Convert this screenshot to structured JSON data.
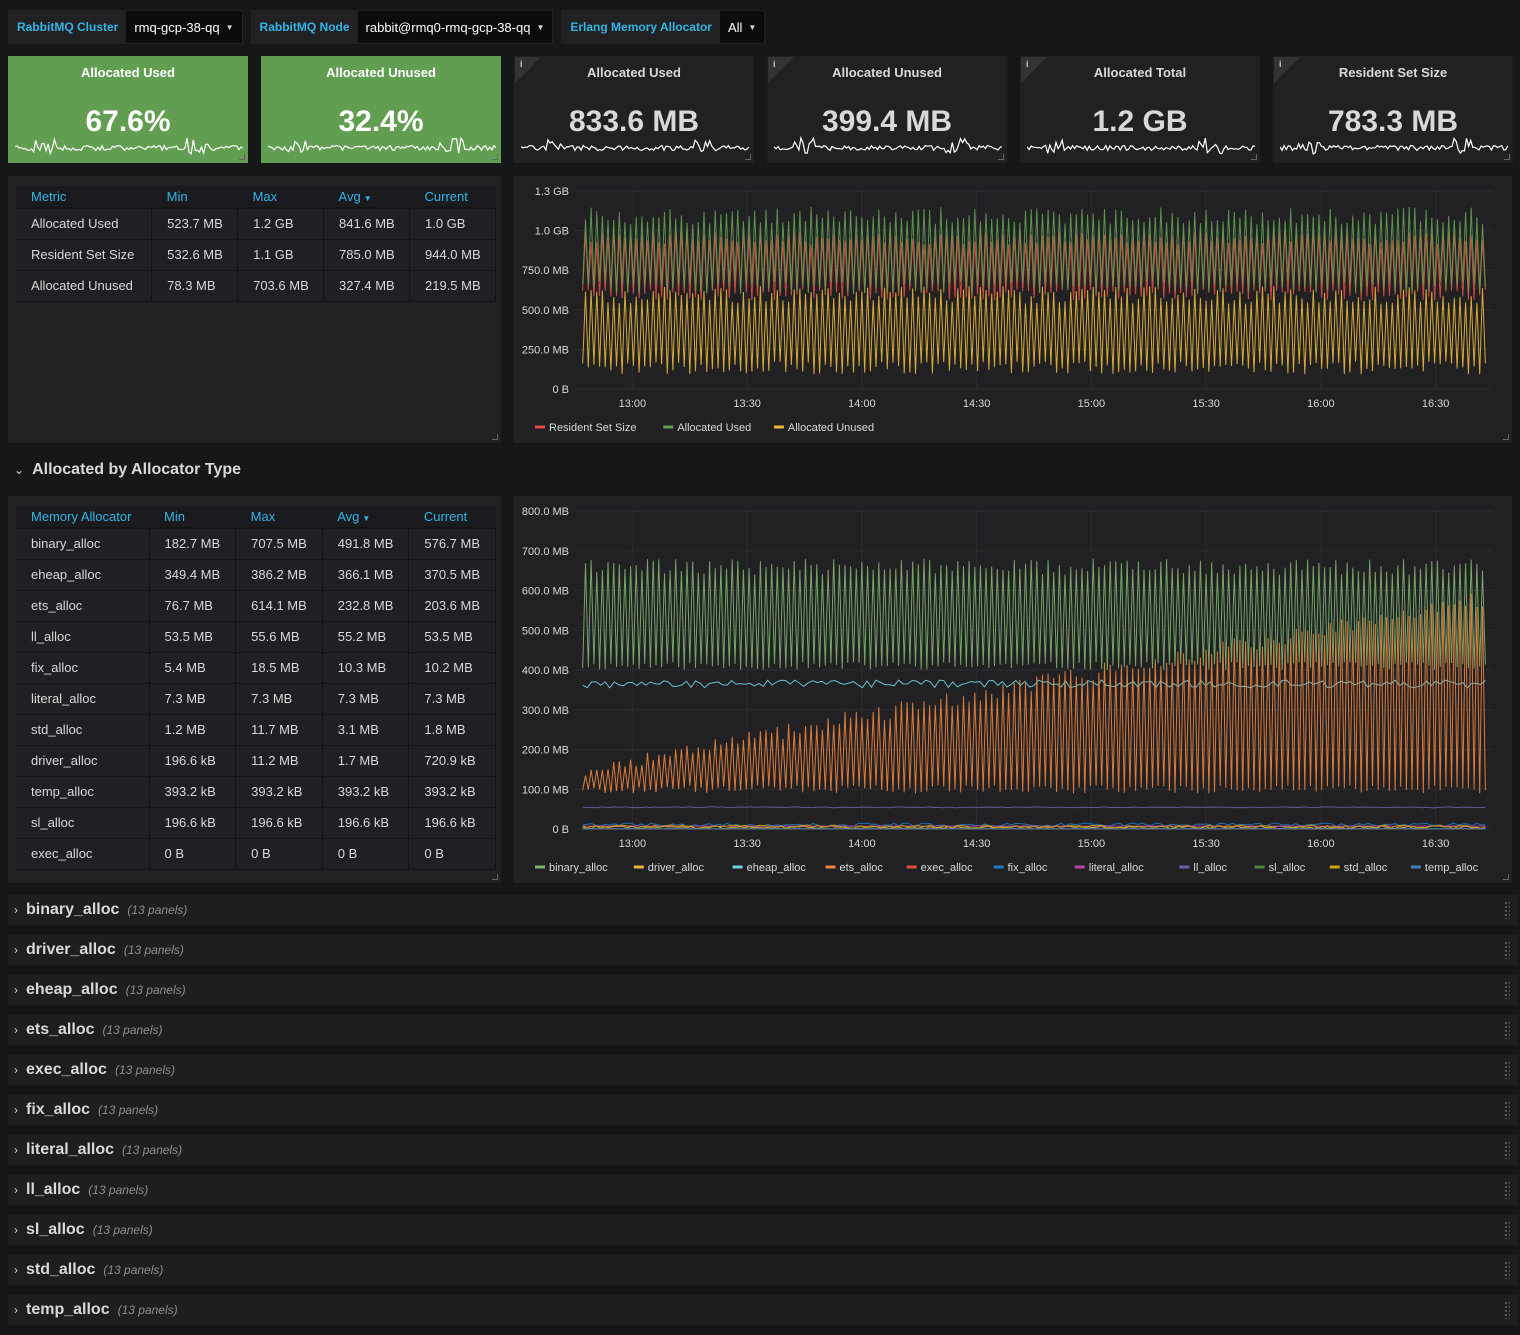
{
  "variables": [
    {
      "label": "RabbitMQ Cluster",
      "value": "rmq-gcp-38-qq"
    },
    {
      "label": "RabbitMQ Node",
      "value": "rabbit@rmq0-rmq-gcp-38-qq"
    },
    {
      "label": "Erlang Memory Allocator",
      "value": "All"
    }
  ],
  "stats": [
    {
      "title": "Allocated Used",
      "value": "67.6%",
      "color": "#629e51",
      "info": false
    },
    {
      "title": "Allocated Unused",
      "value": "32.4%",
      "color": "#629e51",
      "info": false
    },
    {
      "title": "Allocated Used",
      "value": "833.6 MB",
      "color": "#212124",
      "info": true
    },
    {
      "title": "Allocated Unused",
      "value": "399.4 MB",
      "color": "#212124",
      "info": true
    },
    {
      "title": "Allocated Total",
      "value": "1.2 GB",
      "color": "#212124",
      "info": true
    },
    {
      "title": "Resident Set Size",
      "value": "783.3 MB",
      "color": "#212124",
      "info": true
    }
  ],
  "info_glyph": "i",
  "metrics_table": {
    "headers": [
      "Metric",
      "Min",
      "Max",
      "Avg",
      "Current"
    ],
    "sort_column": "Avg",
    "rows": [
      [
        "Allocated Used",
        "523.7 MB",
        "1.2 GB",
        "841.6 MB",
        "1.0 GB"
      ],
      [
        "Resident Set Size",
        "532.6 MB",
        "1.1 GB",
        "785.0 MB",
        "944.0 MB"
      ],
      [
        "Allocated Unused",
        "78.3 MB",
        "703.6 MB",
        "327.4 MB",
        "219.5 MB"
      ]
    ]
  },
  "section": {
    "title": "Allocated by Allocator Type"
  },
  "allocator_table": {
    "headers": [
      "Memory Allocator",
      "Min",
      "Max",
      "Avg",
      "Current"
    ],
    "sort_column": "Avg",
    "rows": [
      [
        "binary_alloc",
        "182.7 MB",
        "707.5 MB",
        "491.8 MB",
        "576.7 MB"
      ],
      [
        "eheap_alloc",
        "349.4 MB",
        "386.2 MB",
        "366.1 MB",
        "370.5 MB"
      ],
      [
        "ets_alloc",
        "76.7 MB",
        "614.1 MB",
        "232.8 MB",
        "203.6 MB"
      ],
      [
        "ll_alloc",
        "53.5 MB",
        "55.6 MB",
        "55.2 MB",
        "53.5 MB"
      ],
      [
        "fix_alloc",
        "5.4 MB",
        "18.5 MB",
        "10.3 MB",
        "10.2 MB"
      ],
      [
        "literal_alloc",
        "7.3 MB",
        "7.3 MB",
        "7.3 MB",
        "7.3 MB"
      ],
      [
        "std_alloc",
        "1.2 MB",
        "11.7 MB",
        "3.1 MB",
        "1.8 MB"
      ],
      [
        "driver_alloc",
        "196.6 kB",
        "11.2 MB",
        "1.7 MB",
        "720.9 kB"
      ],
      [
        "temp_alloc",
        "393.2 kB",
        "393.2 kB",
        "393.2 kB",
        "393.2 kB"
      ],
      [
        "sl_alloc",
        "196.6 kB",
        "196.6 kB",
        "196.6 kB",
        "196.6 kB"
      ],
      [
        "exec_alloc",
        "0 B",
        "0 B",
        "0 B",
        "0 B"
      ]
    ]
  },
  "chart_data": [
    {
      "type": "line",
      "y_ticks": [
        "0 B",
        "250.0 MB",
        "500.0 MB",
        "750.0 MB",
        "1.0 GB",
        "1.3 GB"
      ],
      "y_tick_values_mb": [
        0,
        250,
        500,
        750,
        1000,
        1250
      ],
      "ylim_mb": [
        0,
        1250
      ],
      "x_ticks": [
        "13:00",
        "13:30",
        "14:00",
        "14:30",
        "15:00",
        "15:30",
        "16:00",
        "16:30"
      ],
      "x_range": [
        "12:45",
        "16:45"
      ],
      "grid": true,
      "legend": "bottom",
      "series": [
        {
          "name": "Resident Set Size",
          "color": "#e24d42",
          "low_mb": 560,
          "high_mb": 1000,
          "cycles": 160
        },
        {
          "name": "Allocated Used",
          "color": "#629e51",
          "low_mb": 600,
          "high_mb": 1150,
          "cycles": 160
        },
        {
          "name": "Allocated Unused",
          "color": "#eab839",
          "low_mb": 90,
          "high_mb": 650,
          "cycles": 160
        }
      ]
    },
    {
      "type": "line",
      "y_ticks": [
        "0 B",
        "100.0 MB",
        "200.0 MB",
        "300.0 MB",
        "400.0 MB",
        "500.0 MB",
        "600.0 MB",
        "700.0 MB",
        "800.0 MB"
      ],
      "y_tick_values_mb": [
        0,
        100,
        200,
        300,
        400,
        500,
        600,
        700,
        800
      ],
      "ylim_mb": [
        0,
        800
      ],
      "x_ticks": [
        "13:00",
        "13:30",
        "14:00",
        "14:30",
        "15:00",
        "15:30",
        "16:00",
        "16:30"
      ],
      "x_range": [
        "12:45",
        "16:45"
      ],
      "grid": true,
      "legend": "bottom",
      "series": [
        {
          "name": "binary_alloc",
          "color": "#7eb26d",
          "low_mb": 400,
          "high_mb": 680
        },
        {
          "name": "driver_alloc",
          "color": "#eab839",
          "low_mb": 1,
          "high_mb": 8
        },
        {
          "name": "eheap_alloc",
          "color": "#6ed0e0",
          "low_mb": 355,
          "high_mb": 375
        },
        {
          "name": "ets_alloc",
          "color": "#ef843c",
          "low_mb": 90,
          "high_mb": 600
        },
        {
          "name": "exec_alloc",
          "color": "#e24d42",
          "low_mb": 0,
          "high_mb": 0
        },
        {
          "name": "fix_alloc",
          "color": "#1f78c1",
          "low_mb": 6,
          "high_mb": 15
        },
        {
          "name": "literal_alloc",
          "color": "#ba43a9",
          "low_mb": 7.3,
          "high_mb": 7.3
        },
        {
          "name": "ll_alloc",
          "color": "#705da0",
          "low_mb": 53.5,
          "high_mb": 55.6
        },
        {
          "name": "sl_alloc",
          "color": "#508642",
          "low_mb": 0.2,
          "high_mb": 0.2
        },
        {
          "name": "std_alloc",
          "color": "#cca300",
          "low_mb": 1,
          "high_mb": 10
        },
        {
          "name": "temp_alloc",
          "color": "#447ebc",
          "low_mb": 0.4,
          "high_mb": 0.4
        }
      ]
    }
  ],
  "collapsed_rows": [
    {
      "title": "binary_alloc",
      "count": "(13 panels)"
    },
    {
      "title": "driver_alloc",
      "count": "(13 panels)"
    },
    {
      "title": "eheap_alloc",
      "count": "(13 panels)"
    },
    {
      "title": "ets_alloc",
      "count": "(13 panels)"
    },
    {
      "title": "exec_alloc",
      "count": "(13 panels)"
    },
    {
      "title": "fix_alloc",
      "count": "(13 panels)"
    },
    {
      "title": "literal_alloc",
      "count": "(13 panels)"
    },
    {
      "title": "ll_alloc",
      "count": "(13 panels)"
    },
    {
      "title": "sl_alloc",
      "count": "(13 panels)"
    },
    {
      "title": "std_alloc",
      "count": "(13 panels)"
    },
    {
      "title": "temp_alloc",
      "count": "(13 panels)"
    }
  ]
}
